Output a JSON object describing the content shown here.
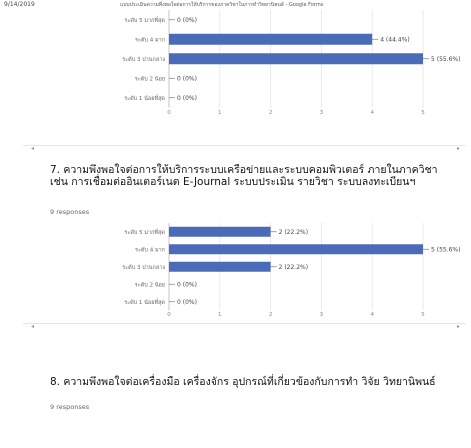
{
  "header": {
    "date": "9/14/2019",
    "doc_title": "แบบประเมินความพึงพอใจต่อการให้บริการของภาควิชาในการทำวิทยานิพนธ์ - Google Forms"
  },
  "colors": {
    "bar": "#4a6bb8",
    "grid": "#e4e4e4"
  },
  "scroll": {
    "left_icon": "arrow-left-icon",
    "right_icon": "arrow-right-icon",
    "left": "◂",
    "right": "▸"
  },
  "chart_data": [
    {
      "type": "bar",
      "orientation": "horizontal",
      "categories": [
        "ระดับ 5 มากที่สุด",
        "ระดับ 4 มาก",
        "ระดับ 3 ปานกลาง",
        "ระดับ 2 น้อย",
        "ระดับ 1 น้อยที่สุด"
      ],
      "values": [
        0,
        4,
        5,
        0,
        0
      ],
      "value_labels": [
        "0 (0%)",
        "4 (44.4%)",
        "5 (55.6%)",
        "0 (0%)",
        "0 (0%)"
      ],
      "xlim": [
        0,
        5
      ],
      "xticks": [
        "0",
        "1",
        "2",
        "3",
        "4",
        "5"
      ],
      "grid": true
    },
    {
      "type": "bar",
      "orientation": "horizontal",
      "categories": [
        "ระดับ 5 มากที่สุด",
        "ระดับ 4 มาก",
        "ระดับ 3 ปานกลาง",
        "ระดับ 2 น้อย",
        "ระดับ 1 น้อยที่สุด"
      ],
      "values": [
        2,
        5,
        2,
        0,
        0
      ],
      "value_labels": [
        "2 (22.2%)",
        "5 (55.6%)",
        "2 (22.2%)",
        "0 (0%)",
        "0 (0%)"
      ],
      "xlim": [
        0,
        5
      ],
      "xticks": [
        "0",
        "1",
        "2",
        "3",
        "4",
        "5"
      ],
      "grid": true
    }
  ],
  "questions": [
    {
      "title": "7. ความพึงพอใจต่อการให้บริการระบบเครือข่ายและระบบคอมพิวเตอร์ ภายในภาควิชา เช่น การเชื่อมต่ออินเตอร์เนต E-Journal ระบบประเมิน รายวิชา ระบบลงทะเบียนฯ",
      "responses": "9 responses"
    },
    {
      "title": "8. ความพึงพอใจต่อเครื่องมือ เครื่องจักร อุปกรณ์ที่เกี่ยวข้องกับการทำ วิจัย วิทยานิพนธ์",
      "responses": "9 responses"
    }
  ]
}
